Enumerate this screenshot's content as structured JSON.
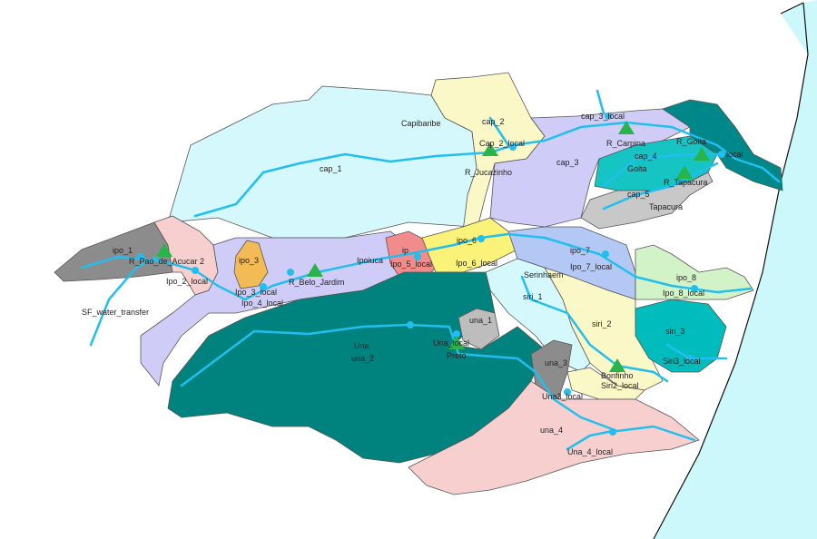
{
  "colors": {
    "river": "#22bfee",
    "station": "#28b44a",
    "ocean": "#ccf7fb"
  },
  "labels": {
    "capibaribe": "Capibaribe",
    "cap_1": "cap_1",
    "cap_2": "cap_2",
    "cap_2_local": "Cap_2_local",
    "r_jucazinho": "R_Jucazinho",
    "cap_3": "cap_3",
    "cap_3_local": "cap_3_local",
    "r_carpina": "R_Carpina",
    "cap_4": "cap_4",
    "goita": "Goita",
    "r_goita": "R_Goita",
    "cap_4_local": "local",
    "r_tapacura": "R_Tapacura",
    "cap_5": "cap_5",
    "tapacura": "Tapacura",
    "ipo_1": "ipo_1",
    "r_pao_de_acucar": "R_Pao_de_Acucar",
    "ipo_2": "2",
    "ipo_2_local": "Ipo_2_local",
    "ipo_3": "ipo_3",
    "ipo_3_local": "Ipo_3_local",
    "ipo_4_local": "Ipo_4_local",
    "r_belo_jardim": "R_Belo_Jardim",
    "ipoiuca": "Ipoiuca",
    "ipo_5": "ip",
    "ipo_5_local": "Ipo_5_local",
    "ipo_6": "ipo_6",
    "ipo_6_local": "Ipo_6_local",
    "ipo_7": "ipo_7",
    "ipo_7_local": "Ipo_7_local",
    "serinhaem": "Serinhaem",
    "siri_1": "siri_1",
    "ipo_8": "ipo_8",
    "ipo_8_local": "Ipo_8_local",
    "siri_2": "siri_2",
    "siri_3": "siri_3",
    "siri3_local": "Siri3_local",
    "una_1": "una_1",
    "una_local": "Una_local",
    "preto": "Preto",
    "una": "Una",
    "una_2": "una_2",
    "una_3": "una_3",
    "bonfinho": "Bonfinho",
    "siri2_local": "Siri2_local",
    "una3_local": "Una3_local",
    "una_4": "una_4",
    "una_4_local": "Una_4_local",
    "sf_water_transfer": "SF_water_transfer"
  }
}
